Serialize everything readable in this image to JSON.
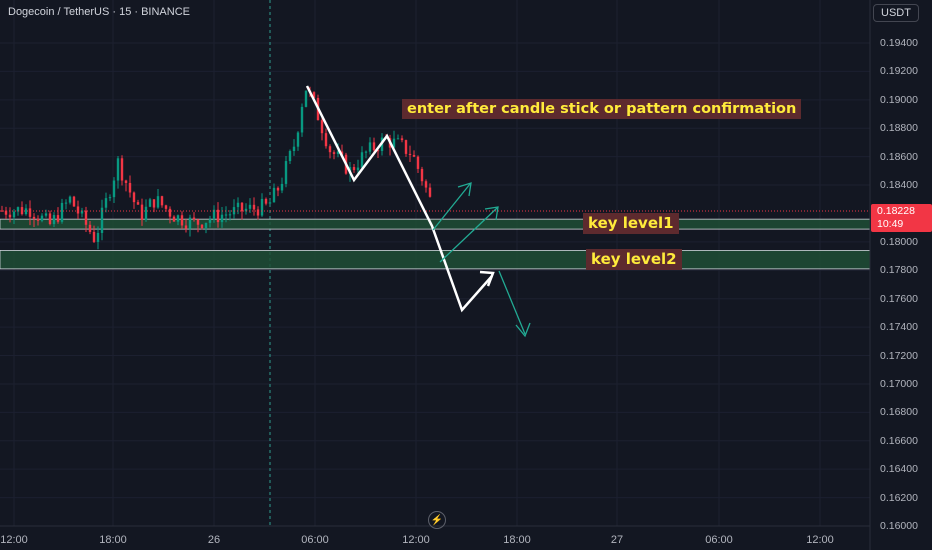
{
  "header": {
    "symbol_title": "Dogecoin / TetherUS · 15 · BINANCE",
    "currency": "USDT"
  },
  "price_axis": {
    "labels": [
      "0.19400",
      "0.19200",
      "0.19000",
      "0.18800",
      "0.18600",
      "0.18400",
      "0.18000",
      "0.17800",
      "0.17600",
      "0.17400",
      "0.17200",
      "0.17000",
      "0.16800",
      "0.16600",
      "0.16400",
      "0.16200",
      "0.16000"
    ]
  },
  "time_axis": {
    "labels": [
      "12:00",
      "18:00",
      "26",
      "06:00",
      "12:00",
      "18:00",
      "27",
      "06:00",
      "12:00"
    ]
  },
  "current_price": {
    "value": "0.18228",
    "countdown": "10:49"
  },
  "annotations": {
    "entry_note": "enter after candle stick or pattern confirmation",
    "level1": "key level1",
    "level2": "key level2"
  },
  "colors": {
    "background": "#131722",
    "up_candle": "#089981",
    "down_candle": "#f23645",
    "zone_fill": "#1e4d35",
    "annotation_bg": "#5d2a2e",
    "annotation_text": "#ffeb3b",
    "projection_arrow": "#22ab94"
  },
  "chart_data": {
    "type": "candlestick",
    "symbol": "DOGE/USDT",
    "interval": "15",
    "ylim": [
      0.16,
      0.1955
    ],
    "x_ticks": [
      "12:00",
      "18:00",
      "26",
      "06:00",
      "12:00",
      "18:00",
      "27",
      "06:00",
      "12:00"
    ],
    "last_price": 0.18228,
    "key_levels": [
      {
        "name": "key level1",
        "low": 0.1809,
        "high": 0.1816
      },
      {
        "name": "key level2",
        "low": 0.1781,
        "high": 0.1794
      }
    ]
  }
}
